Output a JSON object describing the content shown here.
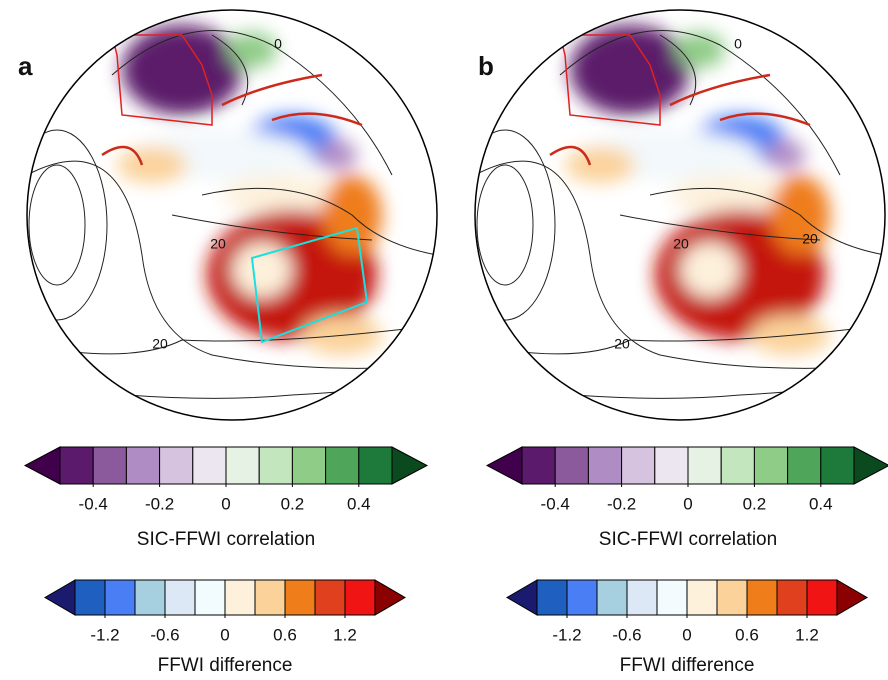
{
  "panels": [
    {
      "label": "a",
      "contour_labels": [
        "0",
        "20",
        "20"
      ],
      "colorbars": [
        {
          "label": "SIC-FFWI correlation",
          "clim": [
            -0.5,
            0.5
          ],
          "ticks": [
            -0.4,
            -0.2,
            0,
            0.2,
            0.4
          ],
          "colors": [
            "#40004b",
            "#5b1a6b",
            "#8a5a9c",
            "#b08cc4",
            "#d5c3e0",
            "#ece6f1",
            "#e6f2e4",
            "#c4e6bf",
            "#8fcc87",
            "#4fa65a",
            "#1e7a3a",
            "#0b4a1e"
          ]
        },
        {
          "label": "FFWI difference",
          "clim": [
            -1.5,
            1.5
          ],
          "ticks": [
            -1.2,
            -0.6,
            0,
            0.6,
            1.2
          ],
          "colors": [
            "#1a1a6e",
            "#1f5fc0",
            "#4a7ef5",
            "#a6cfe0",
            "#dce8f5",
            "#f2fbfd",
            "#fdf1dc",
            "#fbd29a",
            "#ef7d1a",
            "#e0401e",
            "#f01414",
            "#8b0000"
          ]
        }
      ]
    },
    {
      "label": "b",
      "contour_labels": [
        "0",
        "20",
        "20",
        "20"
      ],
      "colorbars": [
        {
          "label": "SIC-FFWI correlation",
          "clim": [
            -0.5,
            0.5
          ],
          "ticks": [
            -0.4,
            -0.2,
            0,
            0.2,
            0.4
          ],
          "colors": [
            "#40004b",
            "#5b1a6b",
            "#8a5a9c",
            "#b08cc4",
            "#d5c3e0",
            "#ece6f1",
            "#e6f2e4",
            "#c4e6bf",
            "#8fcc87",
            "#4fa65a",
            "#1e7a3a",
            "#0b4a1e"
          ]
        },
        {
          "label": "FFWI difference",
          "clim": [
            -1.5,
            1.5
          ],
          "ticks": [
            -1.2,
            -0.6,
            0,
            0.6,
            1.2
          ],
          "colors": [
            "#1a1a6e",
            "#1f5fc0",
            "#4a7ef5",
            "#a6cfe0",
            "#dce8f5",
            "#f2fbfd",
            "#fdf1dc",
            "#fbd29a",
            "#ef7d1a",
            "#e0401e",
            "#f01414",
            "#8b0000"
          ]
        }
      ]
    }
  ]
}
